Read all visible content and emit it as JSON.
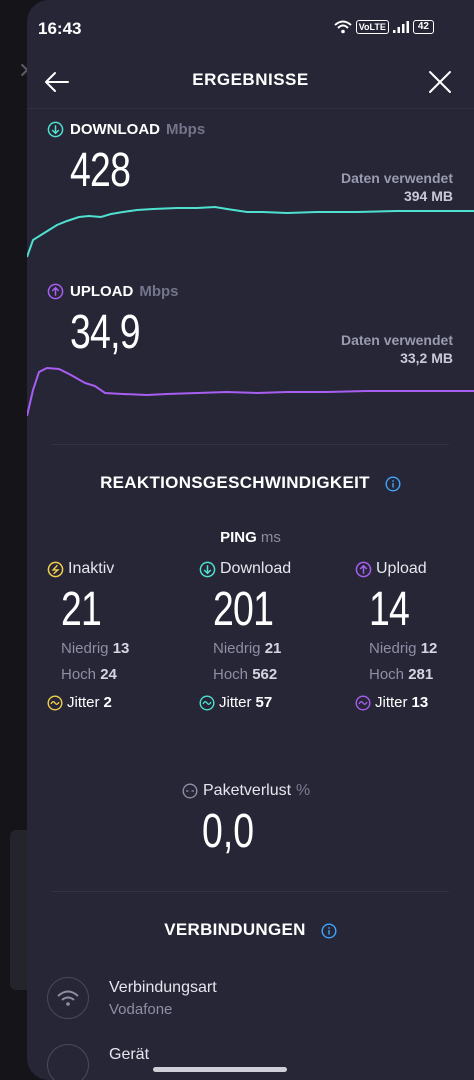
{
  "status_bar": {
    "time": "16:43",
    "network": "VoLTE",
    "battery": "42"
  },
  "header": {
    "title": "ERGEBNISSE"
  },
  "download": {
    "label": "DOWNLOAD",
    "unit": "Mbps",
    "value": "428",
    "data_used_label": "Daten verwendet",
    "data_used_value": "394 MB",
    "color": "#4fe0d0"
  },
  "upload": {
    "label": "UPLOAD",
    "unit": "Mbps",
    "value": "34,9",
    "data_used_label": "Daten verwendet",
    "data_used_value": "33,2 MB",
    "color": "#a85ef0"
  },
  "reaction": {
    "title": "REAKTIONSGESCHWINDIGKEIT",
    "ping_label": "PING",
    "ping_unit": "ms",
    "columns": [
      {
        "label": "Inaktiv",
        "value": "21",
        "low_label": "Niedrig",
        "low": "13",
        "high_label": "Hoch",
        "high": "24",
        "jitter_label": "Jitter",
        "jitter": "2",
        "color": "#f2d04a",
        "icon": "idle-icon"
      },
      {
        "label": "Download",
        "value": "201",
        "low_label": "Niedrig",
        "low": "21",
        "high_label": "Hoch",
        "high": "562",
        "jitter_label": "Jitter",
        "jitter": "57",
        "color": "#4fe0d0",
        "icon": "download-icon"
      },
      {
        "label": "Upload",
        "value": "14",
        "low_label": "Niedrig",
        "low": "12",
        "high_label": "Hoch",
        "high": "281",
        "jitter_label": "Jitter",
        "jitter": "13",
        "color": "#a85ef0",
        "icon": "upload-icon"
      }
    ]
  },
  "packet_loss": {
    "label": "Paketverlust",
    "unit": "%",
    "value": "0,0"
  },
  "connections": {
    "title": "VERBINDUNGEN",
    "items": [
      {
        "label": "Verbindungsart",
        "value": "Vodafone",
        "icon": "wifi-icon"
      },
      {
        "label": "Gerät",
        "value": "",
        "icon": "device-icon"
      }
    ]
  },
  "colors": {
    "sheet": "#262637",
    "accent_info": "#3ea6ff"
  }
}
